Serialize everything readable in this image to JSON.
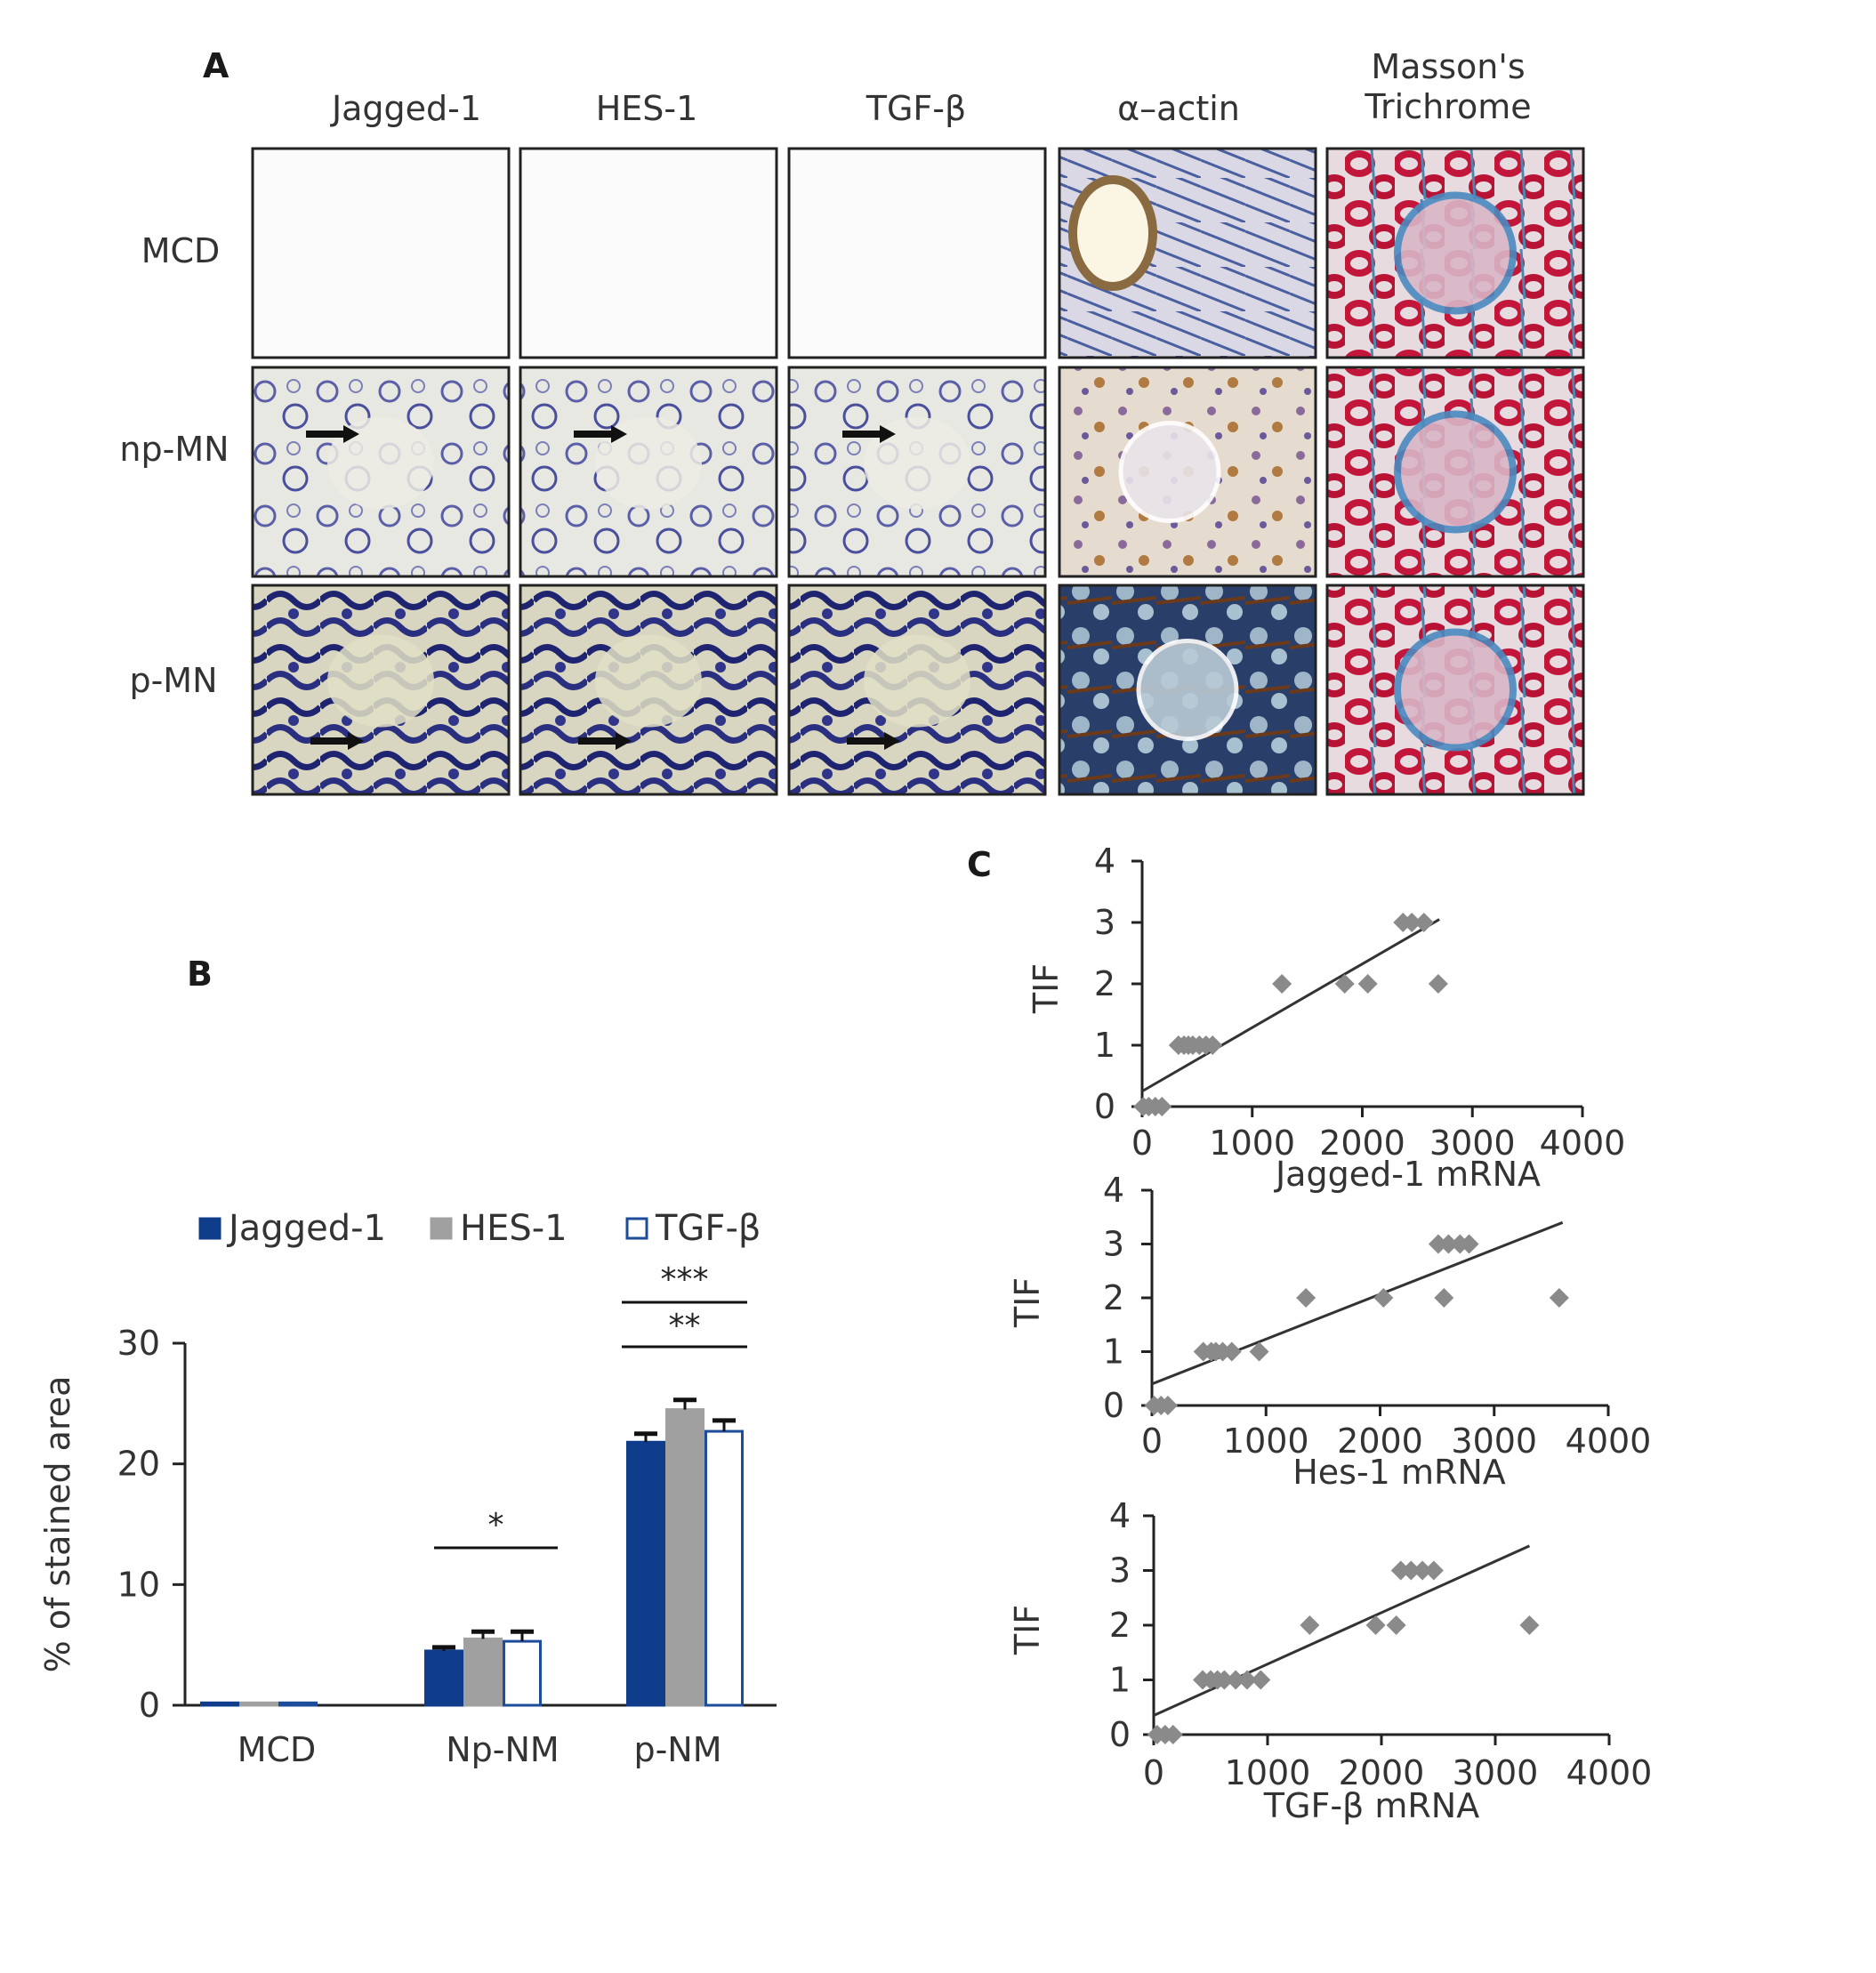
{
  "panel_a": {
    "letter": "A",
    "columns": [
      "Jagged-1",
      "HES-1",
      "TGF-β",
      "α–actin",
      "Masson's|Trichrome"
    ],
    "rows": [
      "MCD",
      "np-MN",
      "p-MN"
    ]
  },
  "panel_b": {
    "letter": "B"
  },
  "panel_c": {
    "letter": "C"
  },
  "colors": {
    "jagged": "#0f3d8c",
    "hes": "#a0a0a0",
    "tgf_outline": "#1d4d9a",
    "points": "#8a8a8a",
    "stain_blue": "#3a3f9a",
    "stain_red": "#c2163a",
    "stain_brown": "#8a5a2a"
  },
  "chart_data": [
    {
      "type": "bar",
      "categories": [
        "MCD",
        "Np-NM",
        "p-NM"
      ],
      "series": [
        {
          "name": "Jagged-1",
          "values": [
            0.2,
            4.5,
            21.8
          ],
          "errors": [
            0,
            0.3,
            0.7
          ]
        },
        {
          "name": "HES-1",
          "values": [
            0.2,
            5.5,
            24.5
          ],
          "errors": [
            0,
            0.6,
            0.8
          ]
        },
        {
          "name": "TGF-β",
          "values": [
            0.2,
            5.3,
            22.7
          ],
          "errors": [
            0,
            0.8,
            0.9
          ]
        }
      ],
      "ylabel": "% of stained area",
      "ylim": [
        0,
        30
      ],
      "yticks": [
        "0",
        "10",
        "20",
        "30"
      ],
      "legend_position": "top",
      "significance": [
        {
          "label": "*",
          "category": "Np-NM"
        },
        {
          "label": "***",
          "category": "p-NM"
        },
        {
          "label": "**",
          "category": "p-NM"
        }
      ]
    },
    {
      "type": "scatter",
      "xlabel": "Jagged-1 mRNA",
      "ylabel": "TIF",
      "xlim": [
        0,
        4000
      ],
      "ylim": [
        0,
        4
      ],
      "xticks": [
        "0",
        "1000",
        "2000",
        "3000",
        "4000"
      ],
      "yticks": [
        "0",
        "1",
        "2",
        "3",
        "4"
      ],
      "points": [
        [
          10,
          0
        ],
        [
          60,
          0
        ],
        [
          120,
          0
        ],
        [
          180,
          0
        ],
        [
          330,
          1
        ],
        [
          380,
          1
        ],
        [
          420,
          1
        ],
        [
          460,
          1
        ],
        [
          520,
          1
        ],
        [
          580,
          1
        ],
        [
          640,
          1
        ],
        [
          1270,
          2
        ],
        [
          1840,
          2
        ],
        [
          2050,
          2
        ],
        [
          2370,
          3
        ],
        [
          2450,
          3
        ],
        [
          2560,
          3
        ],
        [
          2690,
          2
        ]
      ],
      "trendline": [
        [
          0,
          0.25
        ],
        [
          2700,
          3.05
        ]
      ]
    },
    {
      "type": "scatter",
      "xlabel": "Hes-1 mRNA",
      "ylabel": "TIF",
      "xlim": [
        0,
        4000
      ],
      "ylim": [
        0,
        4
      ],
      "xticks": [
        "0",
        "1000",
        "2000",
        "3000",
        "4000"
      ],
      "yticks": [
        "0",
        "1",
        "2",
        "3",
        "4"
      ],
      "points": [
        [
          20,
          0
        ],
        [
          80,
          0
        ],
        [
          140,
          0
        ],
        [
          450,
          1
        ],
        [
          520,
          1
        ],
        [
          560,
          1
        ],
        [
          620,
          1
        ],
        [
          700,
          1
        ],
        [
          940,
          1
        ],
        [
          1350,
          2
        ],
        [
          2030,
          2
        ],
        [
          2510,
          3
        ],
        [
          2560,
          2
        ],
        [
          2600,
          3
        ],
        [
          2700,
          3
        ],
        [
          2780,
          3
        ],
        [
          3570,
          2
        ]
      ],
      "trendline": [
        [
          0,
          0.4
        ],
        [
          3600,
          3.4
        ]
      ]
    },
    {
      "type": "scatter",
      "xlabel": "TGF-β mRNA",
      "ylabel": "TIF",
      "xlim": [
        0,
        4000
      ],
      "ylim": [
        0,
        4
      ],
      "xticks": [
        "0",
        "1000",
        "2000",
        "3000",
        "4000"
      ],
      "yticks": [
        "0",
        "1",
        "2",
        "3",
        "4"
      ],
      "points": [
        [
          30,
          0
        ],
        [
          100,
          0
        ],
        [
          170,
          0
        ],
        [
          430,
          1
        ],
        [
          500,
          1
        ],
        [
          560,
          1
        ],
        [
          620,
          1
        ],
        [
          720,
          1
        ],
        [
          820,
          1
        ],
        [
          940,
          1
        ],
        [
          1370,
          2
        ],
        [
          1950,
          2
        ],
        [
          2130,
          2
        ],
        [
          2170,
          3
        ],
        [
          2260,
          3
        ],
        [
          2360,
          3
        ],
        [
          2460,
          3
        ],
        [
          3300,
          2
        ]
      ],
      "trendline": [
        [
          0,
          0.35
        ],
        [
          3300,
          3.45
        ]
      ]
    }
  ]
}
